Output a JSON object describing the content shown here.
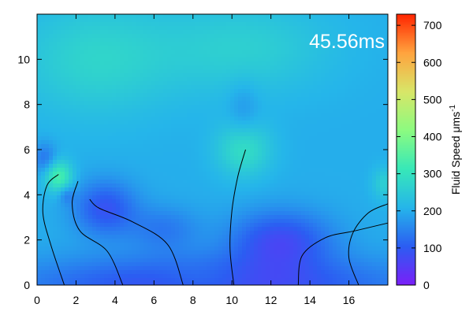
{
  "chart_data": {
    "type": "heatmap",
    "time_annotation": "45.56ms",
    "x_ticks": [
      "0",
      "2",
      "4",
      "6",
      "8",
      "10",
      "12",
      "14",
      "16"
    ],
    "x_tick_values": [
      0,
      2,
      4,
      6,
      8,
      10,
      12,
      14,
      16
    ],
    "y_ticks": [
      "0",
      "2",
      "4",
      "6",
      "8",
      "10"
    ],
    "y_tick_values": [
      0,
      2,
      4,
      6,
      8,
      10
    ],
    "xlim": [
      0,
      18
    ],
    "ylim": [
      0,
      12
    ],
    "colorbar": {
      "label_main": "Fluid Speed μms",
      "label_sup": "-1",
      "ticks": [
        "0",
        "100",
        "200",
        "300",
        "400",
        "500",
        "600",
        "700"
      ],
      "tick_values": [
        0,
        100,
        200,
        300,
        400,
        500,
        600,
        700
      ],
      "range": [
        0,
        730
      ],
      "palette": [
        "#7a1ff8",
        "#2b5df2",
        "#25b5ea",
        "#37e8b8",
        "#8cfb80",
        "#d8e668",
        "#ffa33e",
        "#ff2400"
      ]
    },
    "background_speed": 200,
    "speed_features": [
      {
        "x": 1.1,
        "y": 4.8,
        "sx": 0.7,
        "sy": 0.7,
        "amp": 140
      },
      {
        "x": 0.4,
        "y": 5.6,
        "sx": 0.6,
        "sy": 0.7,
        "amp": -70
      },
      {
        "x": 10.6,
        "y": 6.0,
        "sx": 1.4,
        "sy": 1.2,
        "amp": 90
      },
      {
        "x": 10.6,
        "y": 10.5,
        "sx": 4.5,
        "sy": 2.0,
        "amp": 60
      },
      {
        "x": 3.0,
        "y": 10.0,
        "sx": 4.0,
        "sy": 2.5,
        "amp": 70
      },
      {
        "x": 10.6,
        "y": 7.8,
        "sx": 0.8,
        "sy": 1.3,
        "amp": -35
      },
      {
        "x": 3.5,
        "y": 3.4,
        "sx": 1.6,
        "sy": 1.2,
        "amp": -110
      },
      {
        "x": 12.5,
        "y": 2.0,
        "sx": 2.6,
        "sy": 1.3,
        "amp": -120
      },
      {
        "x": 6.5,
        "y": 2.5,
        "sx": 1.8,
        "sy": 1.0,
        "amp": -60
      },
      {
        "x": 9.0,
        "y": 0.0,
        "sx": 10.0,
        "sy": 1.3,
        "amp": -130
      },
      {
        "x": 17.8,
        "y": 4.5,
        "sx": 0.6,
        "sy": 0.7,
        "amp": 60
      },
      {
        "x": 8.5,
        "y": 0.2,
        "sx": 2.5,
        "sy": 0.7,
        "amp": 40
      },
      {
        "x": 1.5,
        "y": 4.0,
        "sx": 0.4,
        "sy": 0.4,
        "amp": -50
      }
    ],
    "filaments": [
      {
        "points": [
          [
            1.4,
            0.0
          ],
          [
            0.7,
            1.8
          ],
          [
            0.3,
            3.2
          ],
          [
            0.5,
            4.4
          ],
          [
            1.1,
            4.9
          ]
        ]
      },
      {
        "points": [
          [
            4.4,
            0.0
          ],
          [
            3.6,
            1.5
          ],
          [
            2.2,
            2.4
          ],
          [
            1.8,
            3.6
          ],
          [
            2.1,
            4.6
          ]
        ]
      },
      {
        "points": [
          [
            7.5,
            0.0
          ],
          [
            6.7,
            1.8
          ],
          [
            4.9,
            2.8
          ],
          [
            3.2,
            3.4
          ],
          [
            2.7,
            3.8
          ]
        ]
      },
      {
        "points": [
          [
            10.1,
            0.0
          ],
          [
            9.9,
            1.6
          ],
          [
            10.0,
            3.3
          ],
          [
            10.3,
            4.8
          ],
          [
            10.7,
            6.0
          ]
        ]
      },
      {
        "points": [
          [
            13.4,
            0.0
          ],
          [
            13.6,
            1.3
          ],
          [
            14.8,
            2.1
          ],
          [
            16.3,
            2.4
          ],
          [
            18.0,
            2.75
          ]
        ]
      },
      {
        "points": [
          [
            16.5,
            0.0
          ],
          [
            16.0,
            1.2
          ],
          [
            16.2,
            2.3
          ],
          [
            17.0,
            3.2
          ],
          [
            18.0,
            3.6
          ]
        ]
      }
    ]
  }
}
